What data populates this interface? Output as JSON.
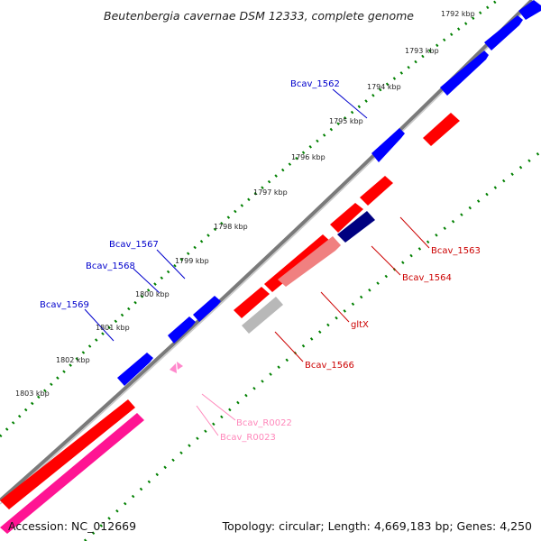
{
  "title": "Beutenbergia cavernae DSM 12333, complete genome",
  "footer": {
    "accession": "Accession: NC_012669",
    "topology": "Topology: circular; Length: 4,669,183 bp; Genes: 4,250"
  },
  "colors": {
    "forward_cds": "#0000ff",
    "reverse_cds": "#ff0000",
    "highlight_cds": "#000080",
    "trna": "#ff88cc",
    "rrna": "#ff1493",
    "pseudo": "#b0b0b0",
    "locus_tag_forward": "#0000cc",
    "locus_tag_reverse": "#cc0000",
    "locus_tag_trna": "#ff88bb",
    "backbone": "#808080",
    "tick_marks": "#008000"
  },
  "scale": {
    "unit": "kbp",
    "labels": [
      "1792 kbp",
      "1793 kbp",
      "1794 kbp",
      "1795 kbp",
      "1796 kbp",
      "1797 kbp",
      "1798 kbp",
      "1799 kbp",
      "1800 kbp",
      "1801 kbp",
      "1802 kbp",
      "1803 kbp"
    ]
  },
  "gene_labels": [
    {
      "text": "Bcav_1562",
      "strand": "forward"
    },
    {
      "text": "Bcav_1563",
      "strand": "reverse"
    },
    {
      "text": "Bcav_1564",
      "strand": "reverse"
    },
    {
      "text": "gltX",
      "strand": "reverse"
    },
    {
      "text": "Bcav_1566",
      "strand": "reverse"
    },
    {
      "text": "Bcav_1567",
      "strand": "forward"
    },
    {
      "text": "Bcav_1568",
      "strand": "forward"
    },
    {
      "text": "Bcav_1569",
      "strand": "forward"
    },
    {
      "text": "Bcav_R0022",
      "strand": "trna"
    },
    {
      "text": "Bcav_R0023",
      "strand": "trna"
    }
  ]
}
